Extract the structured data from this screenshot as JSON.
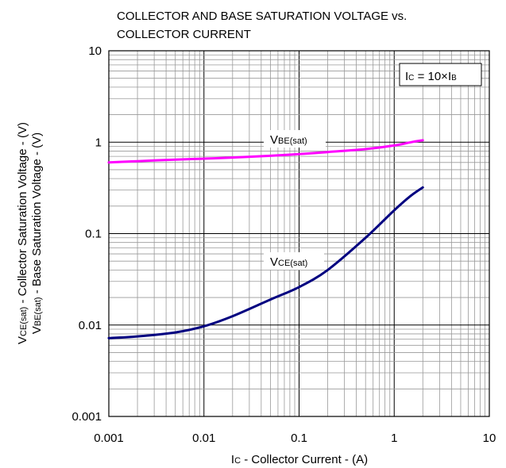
{
  "chart_data": {
    "type": "line",
    "title": "COLLECTOR AND BASE SATURATION VOLTAGE vs. COLLECTOR CURRENT",
    "title_lines": [
      "COLLECTOR AND BASE SATURATION VOLTAGE vs.",
      "COLLECTOR CURRENT"
    ],
    "xlabel": {
      "main": "I",
      "sub": "C",
      "rest": " - Collector Current - (A)"
    },
    "ylabel": {
      "line1": {
        "main": "V",
        "sub": "CE(sat)",
        "rest": " - Collector Saturation Voltage - (V)"
      },
      "line2": {
        "main": "V",
        "sub": "BE(sat)",
        "rest": " - Base Saturation Voltage - (V)"
      }
    },
    "xscale": "log",
    "yscale": "log",
    "xlim": [
      0.001,
      10
    ],
    "ylim": [
      0.001,
      10
    ],
    "x_ticks": [
      0.001,
      0.01,
      0.1,
      1,
      10
    ],
    "x_tick_labels": [
      "0.001",
      "0.01",
      "0.1",
      "1",
      "10"
    ],
    "y_ticks": [
      0.001,
      0.01,
      0.1,
      1,
      10
    ],
    "y_tick_labels": [
      "0.001",
      "0.01",
      "0.1",
      "1",
      "10"
    ],
    "grid": true,
    "legend_box": {
      "parts": [
        {
          "t": "I",
          "sub": false
        },
        {
          "t": "C",
          "sub": true
        },
        {
          "t": " = 10×I",
          "sub": false
        },
        {
          "t": "B",
          "sub": true
        }
      ]
    },
    "series": [
      {
        "name": "VBE(sat)",
        "label_main": "V",
        "label_sub": "BE(sat)",
        "color": "#ff00ff",
        "x": [
          0.001,
          0.002,
          0.005,
          0.01,
          0.02,
          0.05,
          0.1,
          0.2,
          0.5,
          1,
          1.5,
          2
        ],
        "y": [
          0.6,
          0.62,
          0.645,
          0.66,
          0.68,
          0.71,
          0.74,
          0.78,
          0.84,
          0.92,
          1.0,
          1.05
        ]
      },
      {
        "name": "VCE(sat)",
        "label_main": "V",
        "label_sub": "CE(sat)",
        "color": "#000080",
        "x": [
          0.001,
          0.002,
          0.005,
          0.01,
          0.02,
          0.05,
          0.1,
          0.2,
          0.5,
          1,
          1.5,
          2
        ],
        "y": [
          0.0072,
          0.0075,
          0.0083,
          0.0097,
          0.0125,
          0.019,
          0.026,
          0.04,
          0.09,
          0.18,
          0.26,
          0.32
        ]
      }
    ]
  }
}
